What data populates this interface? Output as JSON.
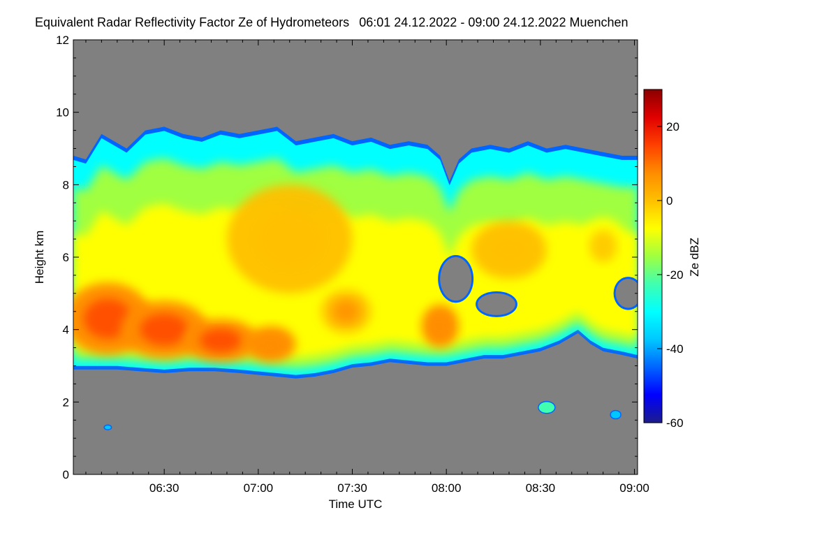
{
  "chart_data": {
    "type": "heatmap",
    "title": "Equivalent Radar Reflectivity Factor Ze of Hydrometeors",
    "subtitle": "06:01 24.12.2022 - 09:00 24.12.2022 Muenchen",
    "xlabel": "Time UTC",
    "ylabel": "Height km",
    "colorbar_label": "Ze dBZ",
    "x_range_minutes": [
      1,
      181
    ],
    "x_tick_minutes": [
      30,
      60,
      90,
      120,
      150,
      180
    ],
    "x_tick_labels": [
      "06:30",
      "07:00",
      "07:30",
      "08:00",
      "08:30",
      "09:00"
    ],
    "ylim": [
      0,
      12
    ],
    "y_ticks": [
      0,
      2,
      4,
      6,
      8,
      10,
      12
    ],
    "y_tick_labels": [
      "0",
      "2",
      "4",
      "6",
      "8",
      "10",
      "12"
    ],
    "colorbar_range": [
      -60,
      30
    ],
    "colorbar_ticks": [
      20,
      0,
      -20,
      -40,
      -60
    ],
    "colorbar_tick_labels": [
      "20",
      "0",
      "-20",
      "-40",
      "-60"
    ],
    "background_color": "#808080",
    "colormap": [
      "#1c1c8c",
      "#0000ff",
      "#0064ff",
      "#00c8ff",
      "#00ffff",
      "#40ffb0",
      "#a0ff40",
      "#ffff00",
      "#ffc000",
      "#ff8c00",
      "#ff4000",
      "#e00000",
      "#8b0000"
    ],
    "cloud_top_km": [
      [
        1,
        8.8
      ],
      [
        5,
        8.7
      ],
      [
        10,
        9.4
      ],
      [
        14,
        9.2
      ],
      [
        18,
        9.0
      ],
      [
        24,
        9.5
      ],
      [
        30,
        9.6
      ],
      [
        36,
        9.4
      ],
      [
        42,
        9.3
      ],
      [
        48,
        9.5
      ],
      [
        54,
        9.4
      ],
      [
        60,
        9.5
      ],
      [
        66,
        9.6
      ],
      [
        72,
        9.2
      ],
      [
        78,
        9.3
      ],
      [
        84,
        9.4
      ],
      [
        90,
        9.2
      ],
      [
        96,
        9.3
      ],
      [
        102,
        9.1
      ],
      [
        108,
        9.2
      ],
      [
        114,
        9.1
      ],
      [
        118,
        8.8
      ],
      [
        121,
        8.1
      ],
      [
        124,
        8.7
      ],
      [
        128,
        9.0
      ],
      [
        134,
        9.1
      ],
      [
        140,
        9.0
      ],
      [
        146,
        9.2
      ],
      [
        152,
        9.0
      ],
      [
        158,
        9.1
      ],
      [
        164,
        9.0
      ],
      [
        170,
        8.9
      ],
      [
        176,
        8.8
      ],
      [
        181,
        8.8
      ]
    ],
    "cloud_base_km": [
      [
        1,
        2.9
      ],
      [
        8,
        2.9
      ],
      [
        15,
        2.9
      ],
      [
        22,
        2.85
      ],
      [
        30,
        2.8
      ],
      [
        38,
        2.85
      ],
      [
        46,
        2.85
      ],
      [
        54,
        2.8
      ],
      [
        60,
        2.75
      ],
      [
        66,
        2.7
      ],
      [
        72,
        2.65
      ],
      [
        78,
        2.7
      ],
      [
        84,
        2.8
      ],
      [
        90,
        2.95
      ],
      [
        96,
        3.0
      ],
      [
        102,
        3.1
      ],
      [
        108,
        3.05
      ],
      [
        114,
        3.0
      ],
      [
        120,
        3.0
      ],
      [
        126,
        3.1
      ],
      [
        132,
        3.2
      ],
      [
        138,
        3.2
      ],
      [
        144,
        3.3
      ],
      [
        150,
        3.4
      ],
      [
        156,
        3.6
      ],
      [
        162,
        3.9
      ],
      [
        166,
        3.6
      ],
      [
        170,
        3.4
      ],
      [
        176,
        3.3
      ],
      [
        181,
        3.2
      ]
    ],
    "reflectivity_cores": [
      {
        "t": 12,
        "h": 4.3,
        "dt": 14,
        "dh": 1.0,
        "dbz": 10
      },
      {
        "t": 30,
        "h": 4.0,
        "dt": 14,
        "dh": 0.8,
        "dbz": 10
      },
      {
        "t": 48,
        "h": 3.7,
        "dt": 12,
        "dh": 0.6,
        "dbz": 8
      },
      {
        "t": 64,
        "h": 3.6,
        "dt": 8,
        "dh": 0.5,
        "dbz": 6
      },
      {
        "t": 118,
        "h": 4.1,
        "dt": 6,
        "dh": 0.6,
        "dbz": 6
      },
      {
        "t": 88,
        "h": 4.5,
        "dt": 8,
        "dh": 0.6,
        "dbz": 2
      },
      {
        "t": 140,
        "h": 6.2,
        "dt": 12,
        "dh": 0.8,
        "dbz": -2
      },
      {
        "t": 170,
        "h": 6.3,
        "dt": 8,
        "dh": 0.8,
        "dbz": -4
      },
      {
        "t": 70,
        "h": 6.5,
        "dt": 20,
        "dh": 1.5,
        "dbz": -2
      }
    ],
    "clear_gaps": [
      {
        "t": 123,
        "h": 5.4,
        "dt": 5,
        "dh": 0.6
      },
      {
        "t": 136,
        "h": 4.7,
        "dt": 6,
        "dh": 0.3
      },
      {
        "t": 178,
        "h": 5.0,
        "dt": 4,
        "dh": 0.4
      }
    ],
    "echo_patches": [
      {
        "t": 152,
        "h": 1.85,
        "dt": 2.5,
        "dh": 0.15,
        "dbz": -25
      },
      {
        "t": 174,
        "h": 1.65,
        "dt": 1.5,
        "dh": 0.1,
        "dbz": -40
      },
      {
        "t": 12,
        "h": 1.3,
        "dt": 1.0,
        "dh": 0.05,
        "dbz": -40
      }
    ]
  }
}
